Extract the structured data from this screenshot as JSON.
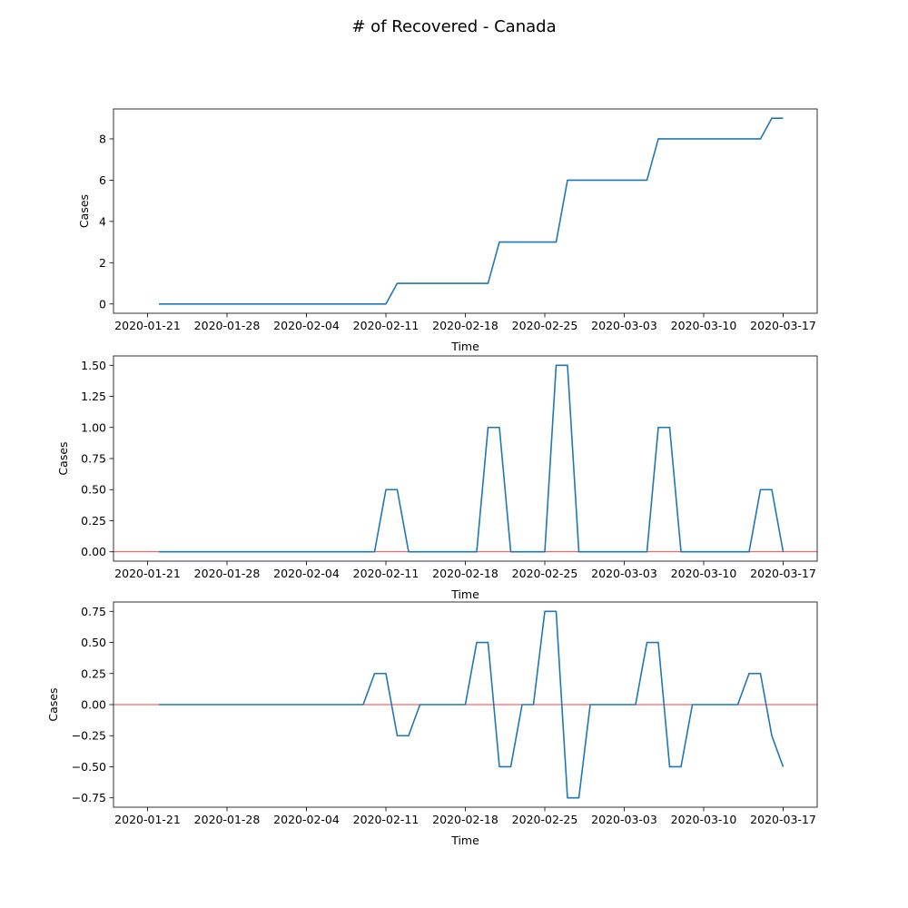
{
  "figure": {
    "title": "# of Recovered - Canada"
  },
  "chart_data": [
    {
      "type": "line",
      "title": "",
      "xlabel": "Time",
      "ylabel": "Cases",
      "x_ticks": [
        "2020-01-21",
        "2020-01-28",
        "2020-02-04",
        "2020-02-11",
        "2020-02-18",
        "2020-02-25",
        "2020-03-03",
        "2020-03-10",
        "2020-03-17"
      ],
      "y_ticks": [
        "0",
        "2",
        "4",
        "6",
        "8"
      ],
      "ylim": [
        -0.45,
        9.45
      ],
      "xlim": [
        "2020-01-18",
        "2020-03-20"
      ],
      "grid": false,
      "series": [
        {
          "color": "#1f77b4",
          "x": [
            "2020-01-22",
            "2020-02-11",
            "2020-02-12",
            "2020-02-20",
            "2020-02-21",
            "2020-02-26",
            "2020-02-27",
            "2020-03-05",
            "2020-03-06",
            "2020-03-15",
            "2020-03-16",
            "2020-03-17"
          ],
          "y": [
            0,
            0,
            1,
            1,
            3,
            3,
            6,
            6,
            8,
            8,
            9,
            9
          ]
        }
      ]
    },
    {
      "type": "line",
      "title": "",
      "xlabel": "Time",
      "ylabel": "Cases",
      "x_ticks": [
        "2020-01-21",
        "2020-01-28",
        "2020-02-04",
        "2020-02-11",
        "2020-02-18",
        "2020-02-25",
        "2020-03-03",
        "2020-03-10",
        "2020-03-17"
      ],
      "y_ticks": [
        "0.00",
        "0.25",
        "0.50",
        "0.75",
        "1.00",
        "1.25",
        "1.50"
      ],
      "ylim": [
        -0.075,
        1.575
      ],
      "xlim": [
        "2020-01-18",
        "2020-03-20"
      ],
      "grid": false,
      "reference_line": {
        "y": 0,
        "color": "#ff0000"
      },
      "series": [
        {
          "color": "#1f77b4",
          "x": [
            "2020-01-22",
            "2020-02-10",
            "2020-02-11",
            "2020-02-12",
            "2020-02-13",
            "2020-02-19",
            "2020-02-20",
            "2020-02-21",
            "2020-02-22",
            "2020-02-25",
            "2020-02-26",
            "2020-02-27",
            "2020-02-28",
            "2020-03-05",
            "2020-03-06",
            "2020-03-07",
            "2020-03-08",
            "2020-03-14",
            "2020-03-15",
            "2020-03-16",
            "2020-03-17"
          ],
          "y": [
            0,
            0,
            0.5,
            0.5,
            0,
            0,
            1,
            1,
            0,
            0,
            1.5,
            1.5,
            0,
            0,
            1,
            1,
            0,
            0,
            0.5,
            0.5,
            0
          ]
        }
      ]
    },
    {
      "type": "line",
      "title": "",
      "xlabel": "Time",
      "ylabel": "Cases",
      "x_ticks": [
        "2020-01-21",
        "2020-01-28",
        "2020-02-04",
        "2020-02-11",
        "2020-02-18",
        "2020-02-25",
        "2020-03-03",
        "2020-03-10",
        "2020-03-17"
      ],
      "y_ticks": [
        "−0.75",
        "−0.50",
        "−0.25",
        "0.00",
        "0.25",
        "0.50",
        "0.75"
      ],
      "ylim": [
        -0.825,
        0.825
      ],
      "xlim": [
        "2020-01-18",
        "2020-03-20"
      ],
      "grid": false,
      "reference_line": {
        "y": 0,
        "color": "#ff0000"
      },
      "series": [
        {
          "color": "#1f77b4",
          "x": [
            "2020-01-22",
            "2020-02-09",
            "2020-02-10",
            "2020-02-11",
            "2020-02-12",
            "2020-02-13",
            "2020-02-14",
            "2020-02-18",
            "2020-02-19",
            "2020-02-20",
            "2020-02-21",
            "2020-02-22",
            "2020-02-23",
            "2020-02-24",
            "2020-02-25",
            "2020-02-26",
            "2020-02-27",
            "2020-02-28",
            "2020-02-29",
            "2020-03-04",
            "2020-03-05",
            "2020-03-06",
            "2020-03-07",
            "2020-03-08",
            "2020-03-09",
            "2020-03-13",
            "2020-03-14",
            "2020-03-15",
            "2020-03-16",
            "2020-03-17"
          ],
          "y": [
            0,
            0,
            0.25,
            0.25,
            -0.25,
            -0.25,
            0,
            0,
            0.5,
            0.5,
            -0.5,
            -0.5,
            0,
            0,
            0.75,
            0.75,
            -0.75,
            -0.75,
            0,
            0,
            0.5,
            0.5,
            -0.5,
            -0.5,
            0,
            0,
            0.25,
            0.25,
            -0.25,
            -0.5
          ]
        }
      ]
    }
  ]
}
